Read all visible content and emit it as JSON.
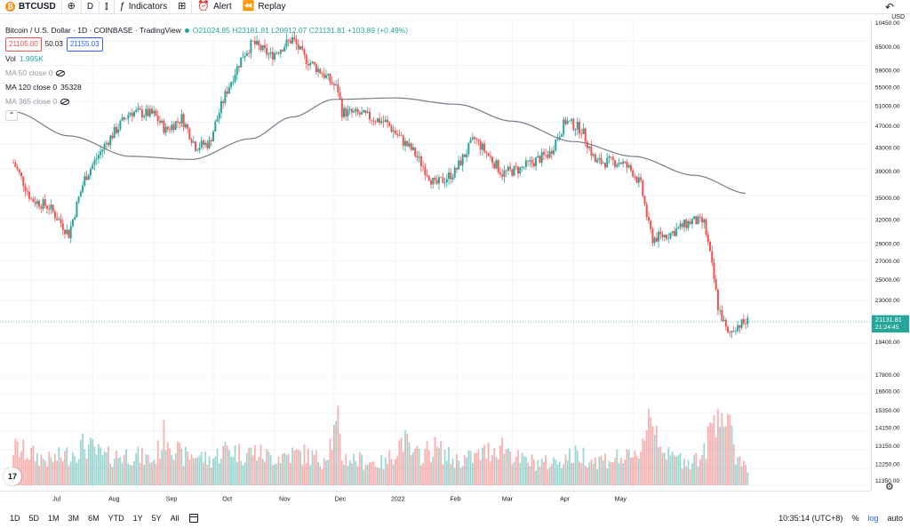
{
  "toolbar": {
    "symbol_icon_glyph": "₿",
    "symbol": "BTCUSD",
    "add_icon_glyph": "⊕",
    "interval": "D",
    "candles_icon_glyph": "⫾",
    "indicators_icon_glyph": "ƒ",
    "indicators": "Indicators",
    "templates_icon_glyph": "⊞",
    "alert_icon_glyph": "⏰",
    "alert": "Alert",
    "replay_icon_glyph": "⏪",
    "replay": "Replay",
    "undo_icon_glyph": "↶"
  },
  "legend": {
    "title": "Bitcoin / U.S. Dollar · 1D · COINBASE · TradingView",
    "ohlc": "O21024.85 H23181.81 L20912.07 C21131.81 +103.89 (+0.49%)",
    "bid": "21105.00",
    "spread": "50.03",
    "ask": "21155.03",
    "vol_label": "Vol",
    "vol_value": "1.995K",
    "ma50": "MA 50 close 0",
    "ma120_label": "MA 120 close 0",
    "ma120_value": "35328",
    "ma365": "MA 365 close 0",
    "collapse_glyph": "⌃"
  },
  "axis_corner": "USD",
  "price_label": {
    "price": "21131.81",
    "countdown": "21:24:45"
  },
  "price_ticks": [
    "65000.00",
    "59000.00",
    "55000.00",
    "51000.00",
    "47000.00",
    "43000.00",
    "39000.00",
    "35000.00",
    "32000.00",
    "29000.00",
    "27000.00",
    "25000.00",
    "23000.00",
    "19400.00",
    "17800.00",
    "16600.00",
    "15350.00",
    "14150.00",
    "13150.00",
    "12250.00",
    "11350.00",
    "10450.00"
  ],
  "time_ticks": [
    "Jul",
    "Aug",
    "Sep",
    "Oct",
    "Nov",
    "Dec",
    "2022",
    "Feb",
    "Mar",
    "Apr",
    "May"
  ],
  "bottom": {
    "ranges": [
      "1D",
      "5D",
      "1M",
      "3M",
      "6M",
      "YTD",
      "1Y",
      "5Y",
      "All"
    ],
    "time": "10:35:14 (UTC+8)",
    "percent": "%",
    "log": "log",
    "auto": "auto"
  },
  "tv_logo_glyph": "17",
  "corner_gear_glyph": "⚙",
  "colors": {
    "up": "#26a69a",
    "down": "#ef5350",
    "ma": "#787b86",
    "grid": "#f0f3fa"
  },
  "chart_data": {
    "type": "candlestick",
    "title": "Bitcoin / U.S. Dollar · 1D · COINBASE · TradingView",
    "scale": "log",
    "last_close": 21131.81,
    "price_range": [
      10450,
      66500
    ],
    "x": [
      "2021-06-22",
      "2021-07-01",
      "2021-07-10",
      "2021-07-20",
      "2021-07-28",
      "2021-08-07",
      "2021-08-20",
      "2021-09-01",
      "2021-09-07",
      "2021-09-15",
      "2021-09-22",
      "2021-09-29",
      "2021-10-08",
      "2021-10-16",
      "2021-10-21",
      "2021-10-30",
      "2021-11-10",
      "2021-11-16",
      "2021-11-25",
      "2021-12-03",
      "2021-12-05",
      "2021-12-14",
      "2021-12-27",
      "2022-01-05",
      "2022-01-10",
      "2022-01-21",
      "2022-01-31",
      "2022-02-10",
      "2022-02-24",
      "2022-03-05",
      "2022-03-20",
      "2022-03-28",
      "2022-04-05",
      "2022-04-12",
      "2022-04-25",
      "2022-05-01",
      "2022-05-05",
      "2022-05-09",
      "2022-05-11",
      "2022-05-19",
      "2022-05-31",
      "2022-06-06",
      "2022-06-13",
      "2022-06-18",
      "2022-06-22",
      "2022-06-28"
    ],
    "close": [
      40000,
      34500,
      33500,
      30000,
      37500,
      42800,
      49000,
      48500,
      45500,
      47800,
      42700,
      43200,
      53500,
      61500,
      64500,
      61300,
      65600,
      60800,
      57300,
      53500,
      49000,
      48500,
      47000,
      43500,
      41800,
      36500,
      38500,
      44000,
      38300,
      39000,
      41500,
      47200,
      45700,
      40100,
      40100,
      38500,
      36500,
      31000,
      29500,
      30000,
      31700,
      31400,
      22500,
      20000,
      20800,
      21131.81
    ],
    "volume": [
      1.2,
      1.0,
      0.8,
      1.0,
      1.3,
      0.9,
      1.0,
      0.8,
      1.7,
      0.9,
      1.0,
      0.8,
      1.2,
      1.0,
      1.1,
      0.9,
      1.0,
      1.0,
      0.8,
      1.9,
      0.9,
      0.8,
      0.7,
      1.5,
      0.9,
      1.2,
      0.8,
      0.9,
      1.3,
      0.8,
      0.7,
      0.9,
      1.0,
      0.8,
      0.9,
      0.8,
      1.2,
      2.3,
      2.1,
      0.9,
      0.8,
      1.0,
      2.7,
      1.9,
      1.0,
      0.6
    ],
    "series": [
      {
        "name": "MA 120 close 0",
        "last_value": 35328,
        "x": [
          "2021-06-22",
          "2021-07-20",
          "2021-08-20",
          "2021-09-20",
          "2021-10-20",
          "2021-11-10",
          "2021-12-01",
          "2022-01-01",
          "2022-02-01",
          "2022-03-01",
          "2022-04-01",
          "2022-05-01",
          "2022-06-01",
          "2022-06-28"
        ],
        "values": [
          49000,
          44500,
          41000,
          40500,
          44000,
          48000,
          51500,
          51800,
          50500,
          47200,
          43500,
          41000,
          38000,
          35328
        ]
      }
    ]
  }
}
